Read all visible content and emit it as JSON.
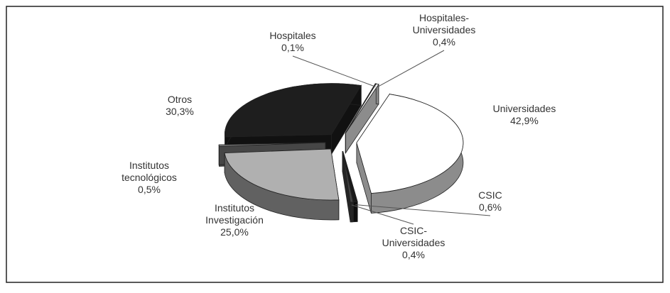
{
  "chart_data": {
    "type": "pie3d",
    "categories": [
      "Universidades",
      "CSIC",
      "CSIC-Universidades",
      "Institutos Investigación",
      "Institutos tecnológicos",
      "Otros",
      "Hospitales",
      "Hospitales-Universidades"
    ],
    "values": [
      42.9,
      0.6,
      0.4,
      25.0,
      0.5,
      30.3,
      0.1,
      0.4
    ],
    "value_labels": [
      "42,9%",
      "0,6%",
      "0,4%",
      "25,0%",
      "0,5%",
      "30,3%",
      "0,1%",
      "0,4%"
    ],
    "colors": [
      "#ffffff",
      "#1a1a1a",
      "#444444",
      "#b0b0b0",
      "#808080",
      "#1e1e1e",
      "#999999",
      "#ffffff"
    ]
  }
}
